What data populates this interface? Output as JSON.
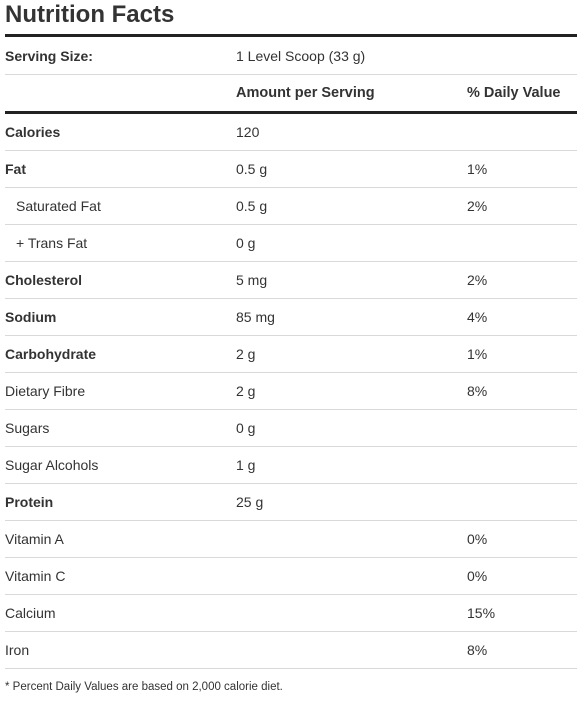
{
  "title": "Nutrition Facts",
  "serving": {
    "label": "Serving Size:",
    "value": "1 Level Scoop (33 g)"
  },
  "header": {
    "amount": "Amount per Serving",
    "daily": "% Daily Value"
  },
  "rows": [
    {
      "name": "Calories",
      "amount": "120",
      "daily": ""
    },
    {
      "name": "Fat",
      "amount": "0.5 g",
      "daily": "1%"
    },
    {
      "name": "Saturated Fat",
      "amount": "0.5 g",
      "daily": "2%"
    },
    {
      "name": "+ Trans Fat",
      "amount": "0 g",
      "daily": ""
    },
    {
      "name": "Cholesterol",
      "amount": "5 mg",
      "daily": "2%"
    },
    {
      "name": "Sodium",
      "amount": "85 mg",
      "daily": "4%"
    },
    {
      "name": "Carbohydrate",
      "amount": "2 g",
      "daily": "1%"
    },
    {
      "name": "Dietary Fibre",
      "amount": "2 g",
      "daily": "8%"
    },
    {
      "name": "Sugars",
      "amount": "0 g",
      "daily": ""
    },
    {
      "name": "Sugar Alcohols",
      "amount": "1 g",
      "daily": ""
    },
    {
      "name": "Protein",
      "amount": "25 g",
      "daily": ""
    },
    {
      "name": "Vitamin A",
      "amount": "",
      "daily": "0%"
    },
    {
      "name": "Vitamin C",
      "amount": "",
      "daily": "0%"
    },
    {
      "name": "Calcium",
      "amount": "",
      "daily": "15%"
    },
    {
      "name": "Iron",
      "amount": "",
      "daily": "8%"
    }
  ],
  "footnote": "* Percent Daily Values are based on 2,000 calorie diet."
}
